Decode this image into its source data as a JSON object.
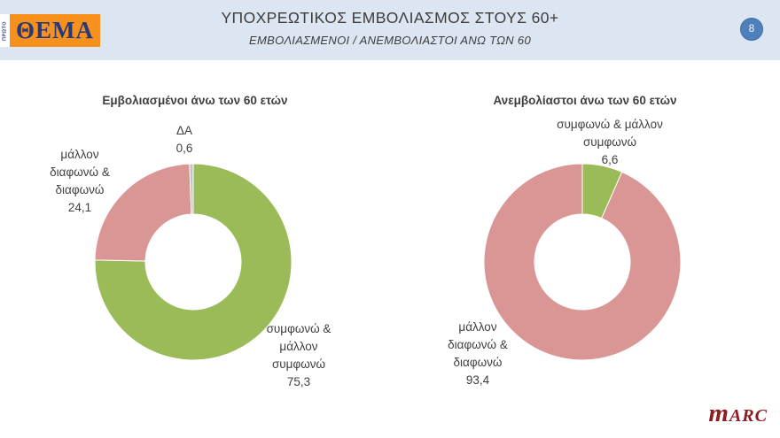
{
  "header": {
    "logo_proto": "ΠΡΩΤΟ",
    "logo_theta": "ΘΕΜΑ",
    "title": "ΥΠΟΧΡΕΩΤΙΚΟΣ ΕΜΒΟΛΙΑΣΜΟΣ ΣΤΟΥΣ 60+",
    "subtitle": "ΕΜΒΟΛΙΑΣΜΕΝΟΙ / ΑΝΕΜΒΟΛΙΑΣΤΟΙ ΑΝΩ ΤΩΝ 60",
    "page_number": "8"
  },
  "footer": {
    "brand_m": "m",
    "brand_rest": "arc"
  },
  "colors": {
    "header_bg": "#dce6f2",
    "badge_blue": "#4e80bc",
    "logo_orange": "#f6911e",
    "logo_navy": "#28397b",
    "agree_green": "#9bbb59",
    "disagree_pink": "#d99694",
    "da_grey": "#c3c3c3",
    "brand_red": "#8e1d21"
  },
  "chart_data": [
    {
      "type": "pie",
      "subtype": "donut",
      "title": "Εμβολιασμένοι άνω των 60 ετών",
      "labels": [
        "συμφωνώ & μάλλον συμφωνώ",
        "μάλλον διαφωνώ & διαφωνώ",
        "ΔΑ"
      ],
      "values": [
        75.3,
        24.1,
        0.6
      ],
      "colors": [
        "#9bbb59",
        "#d99694",
        "#c3c3c3"
      ],
      "start_angle_deg": 0,
      "direction": "clockwise",
      "legend": "none",
      "callouts": {
        "agree": "συμφωνώ &\nμάλλον\nσυμφωνώ\n75,3",
        "disagree": "μάλλον\nδιαφωνώ &\nδιαφωνώ\n24,1",
        "da": "ΔΑ\n0,6"
      }
    },
    {
      "type": "pie",
      "subtype": "donut",
      "title": "Ανεμβολίαστοι άνω των 60 ετών",
      "labels": [
        "συμφωνώ & μάλλον συμφωνώ",
        "μάλλον διαφωνώ & διαφωνώ"
      ],
      "values": [
        6.6,
        93.4
      ],
      "colors": [
        "#9bbb59",
        "#d99694"
      ],
      "start_angle_deg": 0,
      "direction": "clockwise",
      "legend": "none",
      "callouts": {
        "agree": "συμφωνώ & μάλλον\nσυμφωνώ\n6,6",
        "disagree": "μάλλον\nδιαφωνώ &\nδιαφωνώ\n93,4"
      }
    }
  ]
}
